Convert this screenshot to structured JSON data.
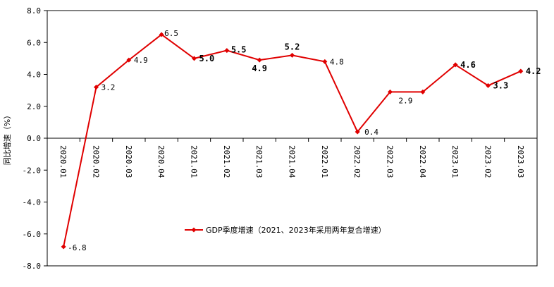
{
  "chart_data": {
    "type": "line",
    "categories": [
      "2020.01",
      "2020.02",
      "2020.03",
      "2020.04",
      "2021.01",
      "2021.02",
      "2021.03",
      "2021.04",
      "2022.01",
      "2022.02",
      "2022.03",
      "2022.04",
      "2023.01",
      "2023.02",
      "2023.03"
    ],
    "series": [
      {
        "name": "GDP季度增速（2021、2023年采用两年复合增速）",
        "values": [
          -6.8,
          3.2,
          4.9,
          6.5,
          5.0,
          5.5,
          4.9,
          5.2,
          4.8,
          0.4,
          2.9,
          2.9,
          4.6,
          3.3,
          4.2
        ],
        "color": "#e00000"
      }
    ],
    "data_labels": [
      "-6.8",
      "3.2",
      "4.9",
      "6.5",
      "5.0",
      "5.5",
      "4.9",
      "5.2",
      "4.8",
      "0.4",
      "2.9",
      "",
      "4.6",
      "3.3",
      "4.2"
    ],
    "bold_labels": [
      false,
      false,
      false,
      false,
      true,
      true,
      true,
      true,
      false,
      false,
      false,
      false,
      true,
      true,
      true
    ],
    "ylabel": "同比增速（%）",
    "xlabel": "",
    "ylim": [
      -8.0,
      8.0
    ],
    "yticks": [
      "8.0",
      "6.0",
      "4.0",
      "2.0",
      "0.0",
      "-2.0",
      "-4.0",
      "-6.0",
      "-8.0"
    ],
    "grid": false,
    "legend_position": "inside-bottom-center"
  }
}
